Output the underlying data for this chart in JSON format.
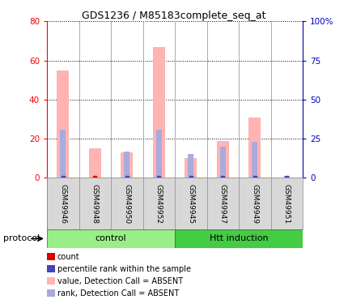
{
  "title": "GDS1236 / M85183complete_seq_at",
  "samples": [
    "GSM49946",
    "GSM49948",
    "GSM49950",
    "GSM49952",
    "GSM49945",
    "GSM49947",
    "GSM49949",
    "GSM49951"
  ],
  "pink_bars": [
    55,
    15,
    13,
    67,
    10,
    19,
    31,
    0
  ],
  "blue_bars": [
    31,
    0,
    17,
    31,
    15,
    20,
    23,
    1
  ],
  "red_marker_vals": [
    1,
    1,
    1,
    1,
    1,
    1,
    1,
    0
  ],
  "blue_marker_vals": [
    1,
    0,
    1,
    1,
    1,
    1,
    1,
    1
  ],
  "left_ylim": [
    0,
    80
  ],
  "right_ylim": [
    0,
    100
  ],
  "left_yticks": [
    0,
    20,
    40,
    60,
    80
  ],
  "right_yticks": [
    0,
    25,
    50,
    75,
    100
  ],
  "right_yticklabels": [
    "0",
    "25",
    "50",
    "75",
    "100%"
  ],
  "left_ycolor": "#ff0000",
  "right_ycolor": "#0000bb",
  "bg_color": "#ffffff",
  "plot_bg_color": "#ffffff",
  "pink_color": "#ffb3b3",
  "blue_bar_color": "#aaaadd",
  "red_dot_color": "#dd0000",
  "blue_dot_color": "#4444bb",
  "control_green": "#99ee88",
  "htt_green": "#44cc44",
  "label_area_color": "#d8d8d8",
  "protocol_label": "protocol",
  "legend_items": [
    {
      "label": "count",
      "color": "#dd0000"
    },
    {
      "label": "percentile rank within the sample",
      "color": "#4444bb"
    },
    {
      "label": "value, Detection Call = ABSENT",
      "color": "#ffb3b3"
    },
    {
      "label": "rank, Detection Call = ABSENT",
      "color": "#aaaadd"
    }
  ]
}
